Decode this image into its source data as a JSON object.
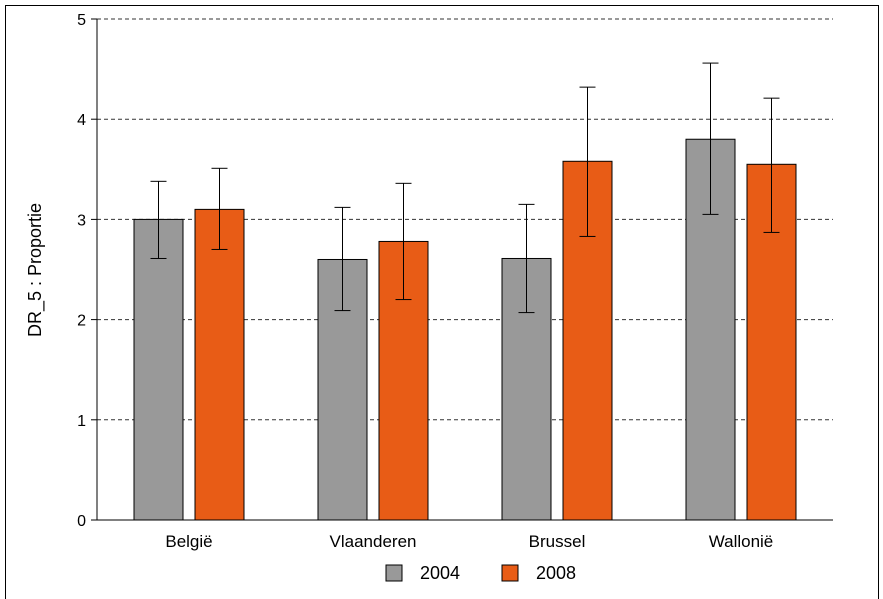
{
  "chart_data": {
    "type": "bar",
    "title": "",
    "xlabel": "",
    "ylabel": "DR_5 : Proportie",
    "ylim": [
      0,
      5
    ],
    "yticks": [
      0,
      1,
      2,
      3,
      4,
      5
    ],
    "grid": "horizontal dashed",
    "legend_position": "bottom",
    "categories": [
      "België",
      "Vlaanderen",
      "Brussel",
      "Wallonië"
    ],
    "series": [
      {
        "name": "2004",
        "color": "#999999",
        "values": [
          3.0,
          2.6,
          2.61,
          3.8
        ],
        "error_low": [
          2.61,
          2.09,
          2.07,
          3.05
        ],
        "error_high": [
          3.38,
          3.12,
          3.15,
          4.56
        ]
      },
      {
        "name": "2008",
        "color": "#e85c16",
        "values": [
          3.1,
          2.78,
          3.58,
          3.55
        ],
        "error_low": [
          2.7,
          2.2,
          2.83,
          2.87
        ],
        "error_high": [
          3.51,
          3.36,
          4.32,
          4.21
        ]
      }
    ]
  }
}
